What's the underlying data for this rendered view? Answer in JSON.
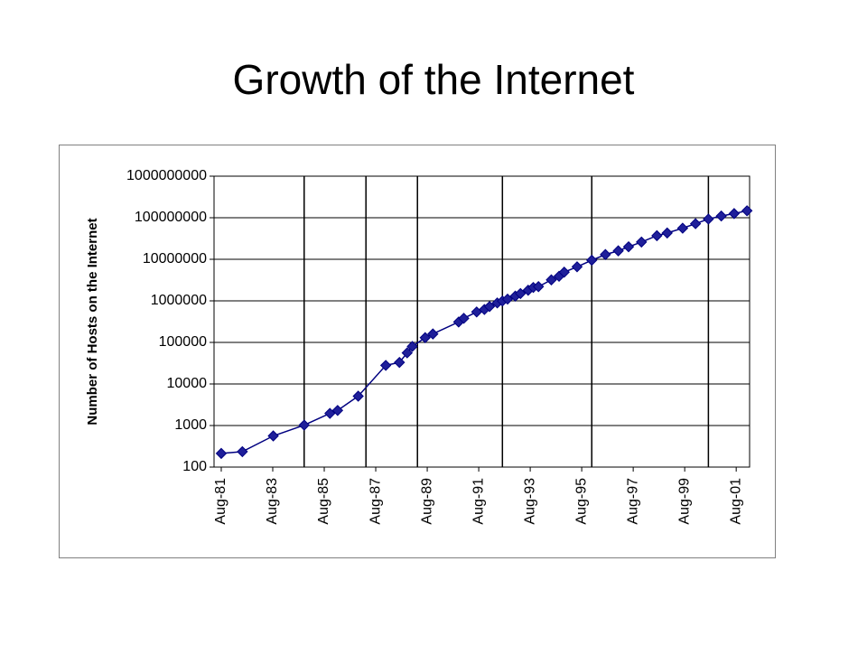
{
  "chart_data": {
    "type": "line",
    "title": "Growth of the Internet",
    "y_label": "Number of Hosts on the Internet",
    "log_y": true,
    "grid": true,
    "ylim": [
      100,
      1000000000
    ],
    "yticks": [
      100,
      1000,
      10000,
      100000,
      1000000,
      10000000,
      100000000,
      1000000000
    ],
    "xlim": [
      1981.3,
      2002.1
    ],
    "xticks": [
      {
        "value": 1981.58,
        "label": "Aug-81"
      },
      {
        "value": 1983.58,
        "label": "Aug-83"
      },
      {
        "value": 1985.58,
        "label": "Aug-85"
      },
      {
        "value": 1987.58,
        "label": "Aug-87"
      },
      {
        "value": 1989.58,
        "label": "Aug-89"
      },
      {
        "value": 1991.58,
        "label": "Aug-91"
      },
      {
        "value": 1993.58,
        "label": "Aug-93"
      },
      {
        "value": 1995.58,
        "label": "Aug-95"
      },
      {
        "value": 1997.58,
        "label": "Aug-97"
      },
      {
        "value": 1999.58,
        "label": "Aug-99"
      },
      {
        "value": 2001.58,
        "label": "Aug-01"
      }
    ],
    "x_gridlines": [
      1984.8,
      1987.2,
      1989.2,
      1992.5,
      1995.97,
      2000.5
    ],
    "x": [
      1981.58,
      1982.4,
      1983.6,
      1984.8,
      1985.8,
      1986.1,
      1986.9,
      1987.97,
      1988.5,
      1988.8,
      1989.0,
      1989.5,
      1989.8,
      1990.8,
      1991.0,
      1991.5,
      1991.8,
      1992.0,
      1992.3,
      1992.5,
      1992.7,
      1993.0,
      1993.2,
      1993.5,
      1993.7,
      1993.9,
      1994.4,
      1994.7,
      1994.9,
      1995.4,
      1995.97,
      1996.5,
      1997.0,
      1997.4,
      1997.9,
      1998.5,
      1998.9,
      1999.5,
      2000.0,
      2000.5,
      2001.0,
      2001.5,
      2002.0
    ],
    "series": [
      {
        "color": "#000080",
        "marker_color": "#1f1f9a",
        "values": [
          213,
          235,
          562,
          1024,
          1961,
          2308,
          5089,
          28000,
          33000,
          56000,
          80000,
          130000,
          160000,
          310000,
          380000,
          540000,
          620000,
          730000,
          890000,
          990000,
          1100000,
          1300000,
          1500000,
          1800000,
          2100000,
          2200000,
          3200000,
          3900000,
          4900000,
          6600000,
          9500000,
          13000000,
          16000000,
          20000000,
          26000000,
          37000000,
          43000000,
          56000000,
          72000000,
          93000000,
          110000000,
          126000000,
          147000000
        ]
      }
    ]
  }
}
